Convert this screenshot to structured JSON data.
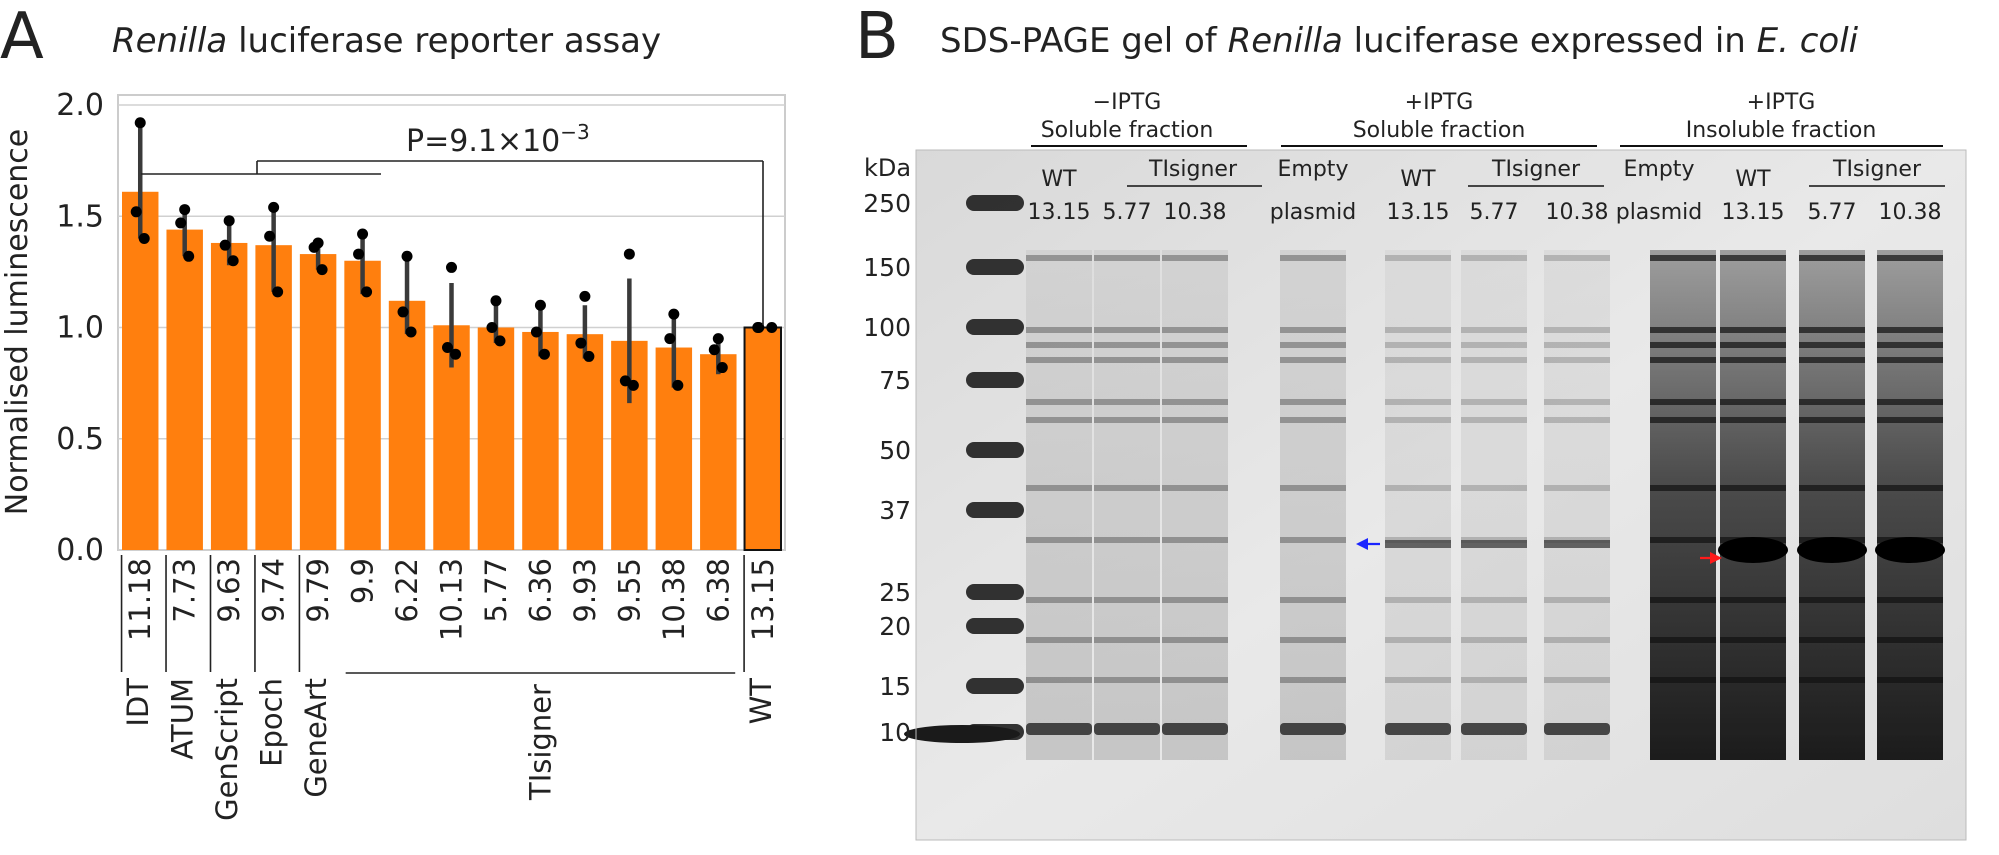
{
  "panel_a": {
    "letter": "A",
    "title_italic": "Renilla",
    "title_rest": " luciferase reporter assay",
    "pvalue_label": "P=9.1×10",
    "pvalue_exp": "−3"
  },
  "panel_b": {
    "letter": "B",
    "title_pre": "SDS-PAGE gel of ",
    "title_italic1": "Renilla",
    "title_mid": " luciferase expressed in ",
    "title_italic2": "E. coli",
    "group1_line1": "−IPTG",
    "group1_line2": "Soluble fraction",
    "group2_line1": "+IPTG",
    "group2_line2": "Soluble fraction",
    "group3_line1": "+IPTG",
    "group3_line2": "Insoluble fraction",
    "kda_label": "kDa",
    "markers": [
      "250",
      "150",
      "100",
      "75",
      "50",
      "37",
      "25",
      "20",
      "15",
      "10"
    ],
    "lane_top": [
      "WT",
      "TIsigner",
      "Empty",
      "WT",
      "TIsigner",
      "Empty",
      "WT",
      "TIsigner"
    ],
    "lane_bottom": [
      "13.15",
      "5.77",
      "10.38",
      "plasmid",
      "13.15",
      "5.77",
      "10.38",
      "plasmid",
      "13.15",
      "5.77",
      "10.38"
    ]
  },
  "chart_data": {
    "type": "bar",
    "title": "Renilla luciferase reporter assay",
    "ylabel": "Normalised luminescence",
    "ylim": [
      0,
      2.0
    ],
    "yticks": [
      0.0,
      0.5,
      1.0,
      1.5,
      2.0
    ],
    "ytick_labels": [
      "0.0",
      "0.5",
      "1.0",
      "1.5",
      "2.0"
    ],
    "grid": true,
    "categories": [
      "11.18",
      "7.73",
      "9.63",
      "9.74",
      "9.79",
      "9.9",
      "6.22",
      "10.13",
      "5.77",
      "6.36",
      "9.93",
      "9.55",
      "10.38",
      "6.38",
      "13.15"
    ],
    "values": [
      1.61,
      1.44,
      1.38,
      1.37,
      1.33,
      1.3,
      1.12,
      1.01,
      1.0,
      0.98,
      0.97,
      0.94,
      0.91,
      0.88,
      1.0
    ],
    "error_low": [
      1.4,
      1.32,
      1.28,
      1.16,
      1.26,
      1.15,
      0.97,
      0.82,
      0.93,
      0.87,
      0.86,
      0.66,
      0.73,
      0.79,
      1.0
    ],
    "error_high": [
      1.91,
      1.54,
      1.48,
      1.54,
      1.38,
      1.42,
      1.3,
      1.2,
      1.1,
      1.1,
      1.1,
      1.22,
      1.07,
      0.93,
      1.0
    ],
    "points": [
      [
        1.92,
        1.52,
        1.4
      ],
      [
        1.53,
        1.47,
        1.32
      ],
      [
        1.48,
        1.37,
        1.3
      ],
      [
        1.54,
        1.41,
        1.16
      ],
      [
        1.38,
        1.36,
        1.26
      ],
      [
        1.42,
        1.33,
        1.16
      ],
      [
        1.32,
        1.07,
        0.98
      ],
      [
        1.27,
        0.91,
        0.88
      ],
      [
        1.12,
        1.0,
        0.94
      ],
      [
        1.1,
        0.98,
        0.88
      ],
      [
        1.14,
        0.93,
        0.87
      ],
      [
        1.33,
        0.76,
        0.74
      ],
      [
        1.06,
        0.95,
        0.74
      ],
      [
        0.95,
        0.9,
        0.82
      ],
      [
        1.0,
        1.0,
        1.0
      ]
    ],
    "group_labels": [
      "IDT",
      "ATUM",
      "GenScript",
      "Epoch",
      "GeneArt",
      "TIsigner",
      "WT"
    ],
    "group_spans": [
      [
        0,
        0
      ],
      [
        1,
        1
      ],
      [
        2,
        2
      ],
      [
        3,
        3
      ],
      [
        4,
        4
      ],
      [
        5,
        13
      ],
      [
        14,
        14
      ]
    ],
    "bar_color": "#ff7f0e",
    "annotation": "P=9.1×10−3"
  }
}
